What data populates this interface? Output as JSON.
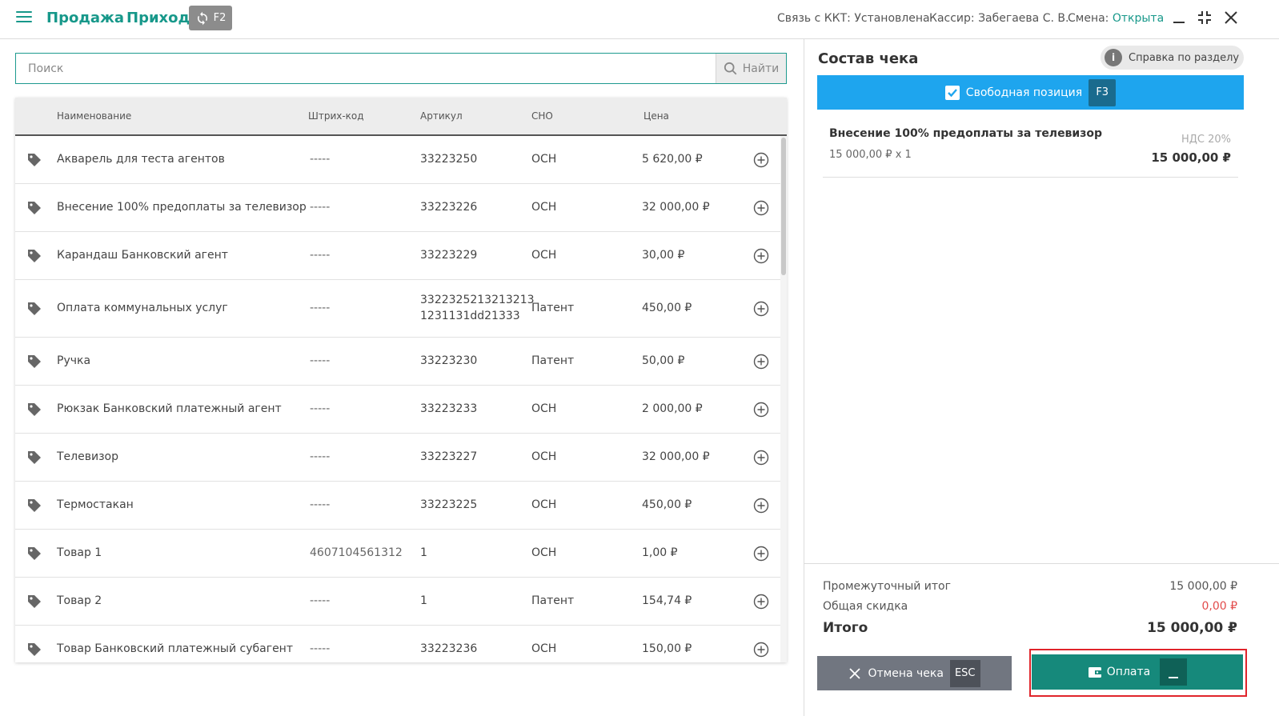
{
  "header": {
    "title": "Продажа",
    "subtitle": "Приход",
    "switch_key": "F2",
    "status_kkt": "Связь с ККТ: Установлена",
    "status_cashier": "Кассир: Забегаева С. В.",
    "status_shift_label": "Смена:",
    "status_shift_value": "Открыта"
  },
  "search": {
    "placeholder": "Поиск",
    "button_label": "Найти"
  },
  "table": {
    "columns": [
      "Наименование",
      "Штрих-код",
      "Артикул",
      "СНО",
      "Цена"
    ],
    "rows": [
      {
        "name": "Акварель для теста агентов",
        "barcode": "-----",
        "article": "33223250",
        "sno": "ОСН",
        "price": "5 620,00 ₽"
      },
      {
        "name": "Внесение 100% предоплаты за телевизор",
        "barcode": "-----",
        "article": "33223226",
        "sno": "ОСН",
        "price": "32 000,00 ₽"
      },
      {
        "name": "Карандаш Банковский агент",
        "barcode": "-----",
        "article": "33223229",
        "sno": "ОСН",
        "price": "30,00 ₽"
      },
      {
        "name": "Оплата коммунальных услуг",
        "barcode": "-----",
        "article": "3322325213213213",
        "article2": "1231131dd21333",
        "sno": "Патент",
        "price": "450,00 ₽"
      },
      {
        "name": "Ручка",
        "barcode": "-----",
        "article": "33223230",
        "sno": "Патент",
        "price": "50,00 ₽"
      },
      {
        "name": "Рюкзак Банковский платежный агент",
        "barcode": "-----",
        "article": "33223233",
        "sno": "ОСН",
        "price": "2 000,00 ₽"
      },
      {
        "name": "Телевизор",
        "barcode": "-----",
        "article": "33223227",
        "sno": "ОСН",
        "price": "32 000,00 ₽"
      },
      {
        "name": "Термостакан",
        "barcode": "-----",
        "article": "33223225",
        "sno": "ОСН",
        "price": "450,00 ₽"
      },
      {
        "name": "Товар 1",
        "barcode": "4607104561312",
        "article": "1",
        "sno": "ОСН",
        "price": "1,00 ₽"
      },
      {
        "name": "Товар 2",
        "barcode": "-----",
        "article": "1",
        "sno": "Патент",
        "price": "154,74 ₽"
      },
      {
        "name": "Товар Банковский платежный субагент",
        "barcode": "-----",
        "article": "33223236",
        "sno": "ОСН",
        "price": "150,00 ₽"
      }
    ]
  },
  "receipt": {
    "title": "Состав чека",
    "help_label": "Справка по разделу",
    "free_position_label": "Свободная позиция",
    "free_position_key": "F3",
    "items": [
      {
        "name": "Внесение 100% предоплаты за телевизор",
        "qty_line": "15 000,00 ₽ x 1",
        "vat": "НДС 20%",
        "total": "15 000,00 ₽"
      }
    ],
    "subtotal_label": "Промежуточный итог",
    "subtotal_value": "15 000,00 ₽",
    "discount_label": "Общая скидка",
    "discount_value": "0,00 ₽",
    "total_label": "Итого",
    "total_value": "15 000,00 ₽",
    "cancel_label": "Отмена чека",
    "cancel_key": "ESC",
    "pay_label": "Оплата"
  },
  "colors": {
    "accent": "#17988a",
    "free_position": "#1ea5ee",
    "pay": "#16897b",
    "cancel": "#717680",
    "highlight": "#e0242b",
    "discount": "#e24b4b"
  }
}
